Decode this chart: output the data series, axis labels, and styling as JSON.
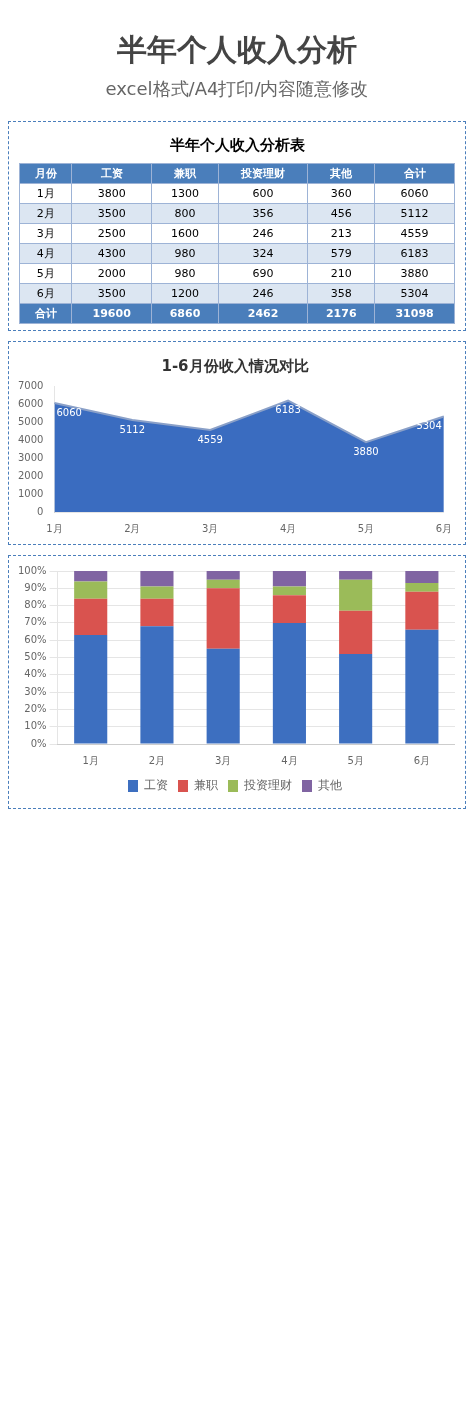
{
  "chart_data": [
    {
      "type": "other",
      "title": "半年个人收入分析",
      "subtitle": "excel格式/A4打印/内容随意修改"
    },
    {
      "type": "heatmap",
      "title": "半年个人收入分析表",
      "ylabel": "月份",
      "categories": [
        "工资",
        "兼职",
        "投资理财",
        "其他",
        "合计"
      ],
      "y_categories": [
        "1月",
        "2月",
        "3月",
        "4月",
        "5月",
        "6月",
        "合计"
      ],
      "cells": [
        [
          3800,
          1300,
          600,
          360,
          6060
        ],
        [
          3500,
          800,
          356,
          456,
          5112
        ],
        [
          2500,
          1600,
          246,
          213,
          4559
        ],
        [
          4300,
          980,
          324,
          579,
          6183
        ],
        [
          2000,
          980,
          690,
          210,
          3880
        ],
        [
          3500,
          1200,
          246,
          358,
          5304
        ],
        [
          19600,
          6860,
          2462,
          2176,
          31098
        ]
      ],
      "data_labels": true
    },
    {
      "type": "area",
      "title": "1-6月份收入情况对比",
      "categories": [
        "1月",
        "2月",
        "3月",
        "4月",
        "5月",
        "6月"
      ],
      "values": [
        6060,
        5112,
        4559,
        6183,
        3880,
        5304
      ],
      "color": "#3a6cc0",
      "ylim": [
        0,
        7000
      ],
      "yticks": [
        0,
        1000,
        2000,
        3000,
        4000,
        5000,
        6000,
        7000
      ],
      "data_labels": true
    },
    {
      "type": "bar",
      "stacked": true,
      "categories": [
        "1月",
        "2月",
        "3月",
        "4月",
        "5月",
        "6月"
      ],
      "series": [
        {
          "name": "工资",
          "color": "#3d6fc0",
          "values": [
            63,
            68,
            55,
            70,
            52,
            66
          ]
        },
        {
          "name": "兼职",
          "color": "#d9534f",
          "values": [
            21,
            16,
            35,
            16,
            25,
            22
          ]
        },
        {
          "name": "投资理财",
          "color": "#9bbb59",
          "values": [
            10,
            7,
            5,
            5,
            18,
            5
          ]
        },
        {
          "name": "其他",
          "color": "#8064a2",
          "values": [
            6,
            9,
            5,
            9,
            5,
            7
          ]
        }
      ],
      "ylim": [
        0,
        100
      ],
      "yticks": [
        {
          "value": 0,
          "label": "0%"
        },
        {
          "value": 10,
          "label": "10%"
        },
        {
          "value": 20,
          "label": "20%"
        },
        {
          "value": 30,
          "label": "30%"
        },
        {
          "value": 40,
          "label": "40%"
        },
        {
          "value": 50,
          "label": "50%"
        },
        {
          "value": 60,
          "label": "60%"
        },
        {
          "value": 70,
          "label": "70%"
        },
        {
          "value": 80,
          "label": "80%"
        },
        {
          "value": 90,
          "label": "90%"
        },
        {
          "value": 100,
          "label": "100%"
        }
      ],
      "grid": "y",
      "legend": "bottom"
    }
  ]
}
